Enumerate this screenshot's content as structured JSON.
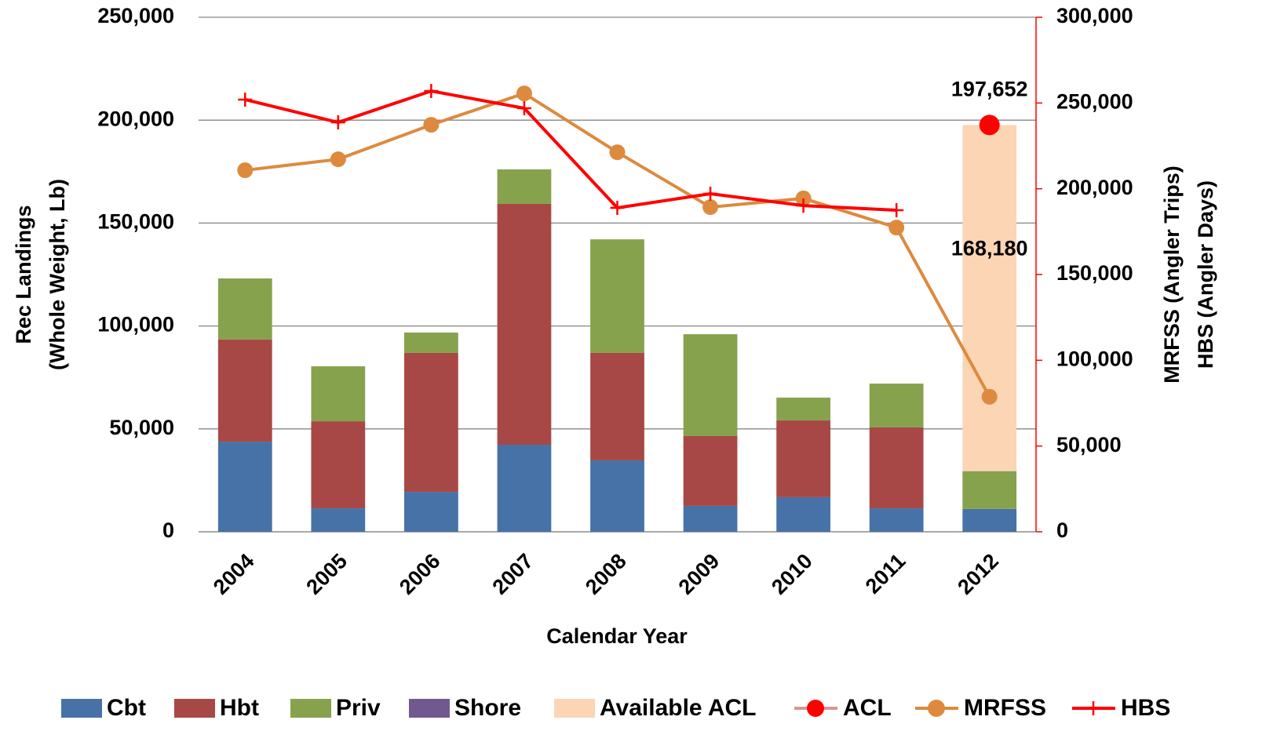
{
  "chart_data": {
    "type": "bar",
    "x_label": "Calendar Year",
    "y_label": [
      "Rec Landings",
      "(Whole Weight, Lb)"
    ],
    "y2_label": [
      "MRFSS (Angler Trips)",
      "HBS (Angler Days)"
    ],
    "categories": [
      "2004",
      "2005",
      "2006",
      "2007",
      "2008",
      "2009",
      "2010",
      "2011",
      "2012"
    ],
    "ylim": [
      0,
      250000
    ],
    "yticks": [
      0,
      {
        "value": 50000,
        "label": "50,000"
      },
      {
        "value": 100000,
        "label": "100,000"
      },
      {
        "value": 150000,
        "label": "150,000"
      },
      {
        "value": 200000,
        "label": "200,000"
      },
      {
        "value": 250000,
        "label": "250,000"
      }
    ],
    "y2lim": [
      0,
      300000
    ],
    "y2ticks": [
      0,
      {
        "value": 50000,
        "label": "50,000"
      },
      {
        "value": 100000,
        "label": "100,000"
      },
      {
        "value": 150000,
        "label": "150,000"
      },
      {
        "value": 200000,
        "label": "200,000"
      },
      {
        "value": 250000,
        "label": "250,000"
      },
      {
        "value": 300000,
        "label": "300,000"
      }
    ],
    "y2_color": "#ff0000",
    "grid": true,
    "legend": "bottom",
    "series": [
      {
        "name": "Cbt",
        "type": "bar",
        "color": "#4672a8",
        "values": [
          43800,
          11400,
          19400,
          42300,
          34700,
          12600,
          16800,
          11400,
          11100
        ]
      },
      {
        "name": "Hbt",
        "type": "bar",
        "color": "#a84846",
        "values": [
          49600,
          42300,
          67500,
          117000,
          52200,
          33900,
          37300,
          39300,
          0
        ]
      },
      {
        "name": "Priv",
        "type": "bar",
        "color": "#87a24d",
        "values": [
          29700,
          26700,
          9900,
          16800,
          55200,
          49500,
          11100,
          21300,
          18372
        ]
      },
      {
        "name": "Shore",
        "type": "bar",
        "color": "#71588f",
        "values": [
          0,
          0,
          0,
          0,
          0,
          0,
          0,
          0,
          0
        ]
      },
      {
        "name": "Available ACL",
        "type": "bar",
        "color": "#fcd5b5",
        "values": [
          null,
          null,
          null,
          null,
          null,
          null,
          null,
          null,
          168180
        ],
        "value_labels": [
          null,
          null,
          null,
          null,
          null,
          null,
          null,
          null,
          "168,180"
        ]
      },
      {
        "name": "ACL",
        "type": "line",
        "marker": "circle",
        "color": "#ff0000",
        "line_color": "#d99694",
        "values": [
          null,
          null,
          null,
          null,
          null,
          null,
          null,
          null,
          197652
        ],
        "value_labels": [
          null,
          null,
          null,
          null,
          null,
          null,
          null,
          null,
          "197,652"
        ]
      },
      {
        "name": "MRFSS",
        "type": "line",
        "marker": "circle",
        "axis": "y2",
        "color": "#dd8a3e",
        "values": [
          210800,
          217200,
          237300,
          255600,
          221300,
          189300,
          194400,
          177400,
          78700
        ]
      },
      {
        "name": "HBS",
        "type": "line",
        "marker": "plus",
        "axis": "y2",
        "color": "#ff0000",
        "values": [
          252000,
          238700,
          257000,
          246950,
          188900,
          197100,
          190200,
          187500,
          null
        ]
      }
    ]
  }
}
